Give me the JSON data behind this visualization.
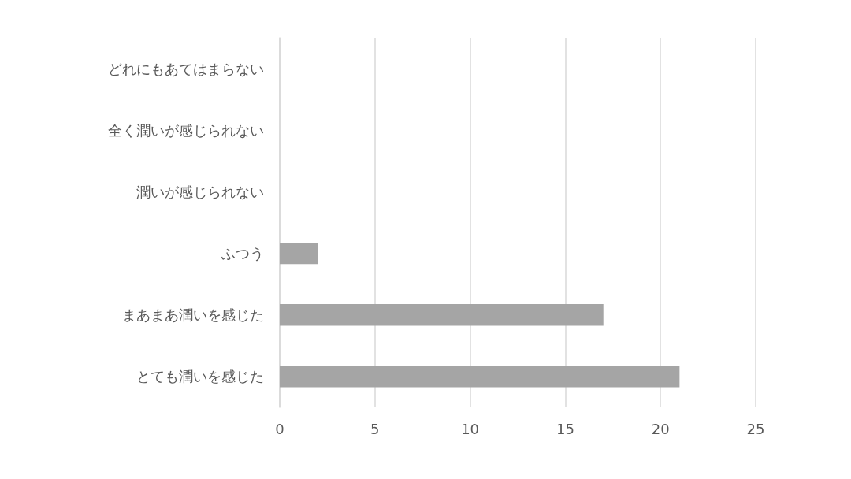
{
  "chart_data": {
    "type": "bar",
    "orientation": "horizontal",
    "categories": [
      "どれにもあてはまらない",
      "全く潤いが感じられない",
      "潤いが感じられない",
      "ふつう",
      "まあまあ潤いを感じた",
      "とても潤いを感じた"
    ],
    "values": [
      0,
      0,
      0,
      2,
      17,
      21
    ],
    "color": "#a5a5a5",
    "xlim": [
      0,
      25
    ],
    "xticks": [
      0,
      5,
      10,
      15,
      20,
      25
    ],
    "grid": "x"
  }
}
